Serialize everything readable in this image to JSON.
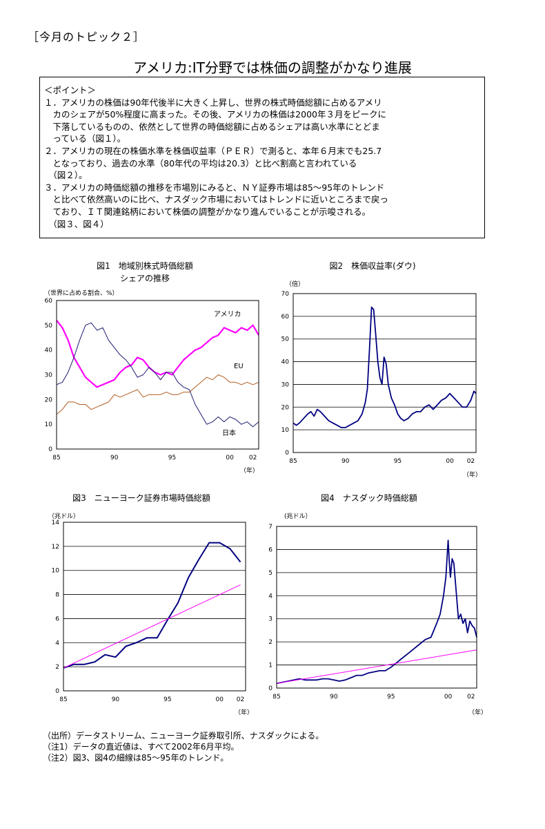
{
  "header": {
    "topic": "［今月のトピック２］",
    "title": "アメリカ:IT分野では株価の調整がかなり進展"
  },
  "points": {
    "heading": "＜ポイント＞",
    "lines": [
      "１．アメリカの株価は90年代後半に大きく上昇し、世界の株式時価総額に占めるアメリ",
      "　カのシェアが50%程度に高まった。その後、アメリカの株価は2000年３月をピークに",
      "　下落しているものの、依然として世界の時価総額に占めるシェアは高い水準にとどま",
      "　っている（図１）。",
      "２．アメリカの現在の株価水準を株価収益率（ＰＥＲ）で測ると、本年６月末でも25.7",
      "　となっており、過去の水準（80年代の平均は20.3）と比べ割高と言われている",
      "　（図２）。",
      "３．アメリカの時価総額の推移を市場別にみると、ＮＹ証券市場は85～95年のトレンド",
      "　と比べて依然高いのに比べ、ナスダック市場においてはトレンドに近いところまで戻っ",
      "　ており、ＩＴ関連銘柄において株価の調整がかなり進んでいることが示唆される。",
      "　（図３、図４）"
    ]
  },
  "chart_data": [
    {
      "type": "line",
      "title": "図1　地域別株式時価総額",
      "subtitle": "シェアの推移",
      "ylabel": "（世界に占める割合、%）",
      "xlabel": "（年）",
      "ylim": [
        0,
        60
      ],
      "yticks": [
        "0",
        "10",
        "20",
        "30",
        "40",
        "50",
        "60"
      ],
      "xlim": [
        1985,
        2002.5
      ],
      "xticks": [
        {
          "v": 1985,
          "t": "85"
        },
        {
          "v": 1990,
          "t": "90"
        },
        {
          "v": 1995,
          "t": "95"
        },
        {
          "v": 2000,
          "t": "00"
        },
        {
          "v": 2002,
          "t": "02"
        }
      ],
      "grid": false,
      "series": [
        {
          "name": "アメリカ",
          "color": "#ff00ff",
          "width": 2.2,
          "x": [
            1985,
            1985.5,
            1986,
            1986.5,
            1987,
            1987.5,
            1988,
            1988.5,
            1989,
            1989.5,
            1990,
            1990.5,
            1991,
            1991.5,
            1992,
            1992.5,
            1993,
            1993.5,
            1994,
            1994.5,
            1995,
            1995.5,
            1996,
            1996.5,
            1997,
            1997.5,
            1998,
            1998.5,
            1999,
            1999.5,
            2000,
            2000.5,
            2001,
            2001.5,
            2002,
            2002.5
          ],
          "y": [
            52,
            49,
            44,
            37,
            33,
            29,
            27,
            25,
            26,
            27,
            28,
            31,
            33,
            34,
            37,
            36,
            33,
            31,
            30,
            31,
            30,
            33,
            36,
            38,
            40,
            41,
            43,
            45,
            46,
            49,
            48,
            47,
            49,
            48,
            50,
            46
          ]
        },
        {
          "name": "EU",
          "color": "#b05a1e",
          "width": 1,
          "x": [
            1985,
            1985.5,
            1986,
            1986.5,
            1987,
            1987.5,
            1988,
            1988.5,
            1989,
            1989.5,
            1990,
            1990.5,
            1991,
            1991.5,
            1992,
            1992.5,
            1993,
            1993.5,
            1994,
            1994.5,
            1995,
            1995.5,
            1996,
            1996.5,
            1997,
            1997.5,
            1998,
            1998.5,
            1999,
            1999.5,
            2000,
            2000.5,
            2001,
            2001.5,
            2002,
            2002.5
          ],
          "y": [
            14,
            16,
            19,
            19,
            18,
            18,
            16,
            17,
            18,
            19,
            22,
            21,
            22,
            23,
            24,
            21,
            22,
            22,
            22,
            23,
            22,
            22,
            23,
            23,
            25,
            27,
            29,
            28,
            30,
            29,
            27,
            27,
            26,
            27,
            26,
            27
          ]
        },
        {
          "name": "日本",
          "color": "#1a1a6e",
          "width": 1,
          "x": [
            1985,
            1985.5,
            1986,
            1986.5,
            1987,
            1987.5,
            1988,
            1988.5,
            1989,
            1989.5,
            1990,
            1990.5,
            1991,
            1991.5,
            1992,
            1992.5,
            1993,
            1993.5,
            1994,
            1994.5,
            1995,
            1995.5,
            1996,
            1996.5,
            1997,
            1997.5,
            1998,
            1998.5,
            1999,
            1999.5,
            2000,
            2000.5,
            2001,
            2001.5,
            2002,
            2002.5
          ],
          "y": [
            26,
            27,
            31,
            37,
            44,
            50,
            51,
            48,
            49,
            44,
            41,
            38,
            36,
            33,
            29,
            30,
            33,
            31,
            28,
            31,
            31,
            27,
            25,
            24,
            18,
            14,
            10,
            11,
            13,
            11,
            13,
            12,
            10,
            11,
            9,
            11
          ]
        }
      ]
    },
    {
      "type": "line",
      "title": "図2　株価収益率(ダウ)",
      "ylabel": "（倍）",
      "xlabel": "（年）",
      "ylim": [
        0,
        70
      ],
      "yticks": [
        "0",
        "10",
        "20",
        "30",
        "40",
        "50",
        "60",
        "70"
      ],
      "xlim": [
        1985,
        2002.5
      ],
      "xticks": [
        {
          "v": 1985,
          "t": "85"
        },
        {
          "v": 1990,
          "t": "90"
        },
        {
          "v": 1995,
          "t": "95"
        },
        {
          "v": 2000,
          "t": "00"
        },
        {
          "v": 2002,
          "t": "02"
        }
      ],
      "grid": true,
      "series": [
        {
          "name": "",
          "color": "#000080",
          "width": 1.8,
          "x": [
            1985,
            1985.3,
            1985.6,
            1986,
            1986.4,
            1986.7,
            1987,
            1987.3,
            1987.6,
            1988,
            1988.4,
            1988.8,
            1989.2,
            1989.6,
            1990,
            1990.4,
            1990.8,
            1991.2,
            1991.6,
            1991.9,
            1992.1,
            1992.3,
            1992.5,
            1992.7,
            1992.9,
            1993.1,
            1993.3,
            1993.5,
            1993.7,
            1993.9,
            1994.1,
            1994.4,
            1994.7,
            1995,
            1995.3,
            1995.6,
            1996,
            1996.4,
            1996.8,
            1997.2,
            1997.6,
            1998,
            1998.4,
            1998.8,
            1999.2,
            1999.6,
            2000,
            2000.4,
            2000.8,
            2001.2,
            2001.6,
            2002,
            2002.3,
            2002.5
          ],
          "y": [
            13,
            12,
            13,
            15,
            17,
            18,
            16,
            19,
            18,
            16,
            14,
            13,
            12,
            11,
            11,
            12,
            13,
            14,
            17,
            22,
            28,
            45,
            64,
            63,
            52,
            40,
            33,
            30,
            42,
            39,
            30,
            24,
            21,
            17,
            15,
            14,
            15,
            17,
            18,
            18,
            20,
            21,
            19,
            21,
            23,
            24,
            26,
            24,
            22,
            20,
            20,
            23,
            27,
            26
          ]
        }
      ]
    },
    {
      "type": "line",
      "title": "図3　ニューヨーク証券市場時価総額",
      "ylabel": "（兆ドル）",
      "xlabel": "（年）",
      "ylim": [
        0,
        14
      ],
      "yticks": [
        "0",
        "2",
        "4",
        "6",
        "8",
        "10",
        "12",
        "14"
      ],
      "xlim": [
        1985,
        2002.5
      ],
      "xticks": [
        {
          "v": 1985,
          "t": "85"
        },
        {
          "v": 1990,
          "t": "90"
        },
        {
          "v": 1995,
          "t": "95"
        },
        {
          "v": 2000,
          "t": "00"
        },
        {
          "v": 2002,
          "t": "02"
        }
      ],
      "grid": true,
      "series": [
        {
          "name": "",
          "color": "#000080",
          "width": 2,
          "x": [
            1985,
            1986,
            1987,
            1988,
            1989,
            1990,
            1991,
            1992,
            1993,
            1994,
            1995,
            1996,
            1997,
            1998,
            1999,
            2000,
            2001,
            2002
          ],
          "y": [
            1.9,
            2.2,
            2.2,
            2.4,
            3.0,
            2.8,
            3.7,
            4.0,
            4.4,
            4.4,
            5.9,
            7.3,
            9.4,
            10.9,
            12.3,
            12.3,
            11.8,
            10.7
          ]
        },
        {
          "name": "",
          "color": "#ff00ff",
          "width": 1,
          "x": [
            1985,
            2002
          ],
          "y": [
            1.9,
            8.8
          ]
        }
      ]
    },
    {
      "type": "line",
      "title": "図4　ナスダック時価総額",
      "ylabel": "(兆ドル）",
      "xlabel": "（年）",
      "ylim": [
        0,
        7
      ],
      "yticks": [
        "0",
        "1",
        "2",
        "3",
        "4",
        "5",
        "6",
        "7"
      ],
      "xlim": [
        1985,
        2002.5
      ],
      "xticks": [
        {
          "v": 1985,
          "t": "85"
        },
        {
          "v": 1990,
          "t": "90"
        },
        {
          "v": 1995,
          "t": "95"
        },
        {
          "v": 2000,
          "t": "00"
        },
        {
          "v": 2002,
          "t": "02"
        }
      ],
      "grid": true,
      "series": [
        {
          "name": "",
          "color": "#000080",
          "width": 1.8,
          "x": [
            1985,
            1985.5,
            1986,
            1986.5,
            1987,
            1987.5,
            1988,
            1988.5,
            1989,
            1989.5,
            1990,
            1990.5,
            1991,
            1991.5,
            1992,
            1992.5,
            1993,
            1993.5,
            1994,
            1994.5,
            1995,
            1995.5,
            1996,
            1996.5,
            1997,
            1997.5,
            1998,
            1998.5,
            1999,
            1999.3,
            1999.6,
            1999.8,
            2000,
            2000.1,
            2000.2,
            2000.35,
            2000.5,
            2000.7,
            2000.9,
            2001.1,
            2001.3,
            2001.5,
            2001.7,
            2001.9,
            2002.1,
            2002.3,
            2002.5
          ],
          "y": [
            0.2,
            0.25,
            0.3,
            0.35,
            0.4,
            0.35,
            0.35,
            0.35,
            0.4,
            0.4,
            0.35,
            0.3,
            0.35,
            0.45,
            0.55,
            0.55,
            0.65,
            0.7,
            0.75,
            0.75,
            0.9,
            1.1,
            1.3,
            1.5,
            1.7,
            1.9,
            2.1,
            2.2,
            2.8,
            3.2,
            4.0,
            4.8,
            6.4,
            5.5,
            4.8,
            5.6,
            5.4,
            4.2,
            3.0,
            3.2,
            2.8,
            3.0,
            2.4,
            2.9,
            2.7,
            2.6,
            2.2
          ]
        },
        {
          "name": "",
          "color": "#ff00ff",
          "width": 1,
          "x": [
            1985,
            2002.5
          ],
          "y": [
            0.2,
            1.65
          ]
        }
      ]
    }
  ],
  "notes": [
    "（出所）データストリーム、ニューヨーク証券取引所、ナスダックによる。",
    "（注1）データの直近値は、すべて2002年6月平均。",
    "（注2）図3、図4の細線は85～95年のトレンド。"
  ]
}
